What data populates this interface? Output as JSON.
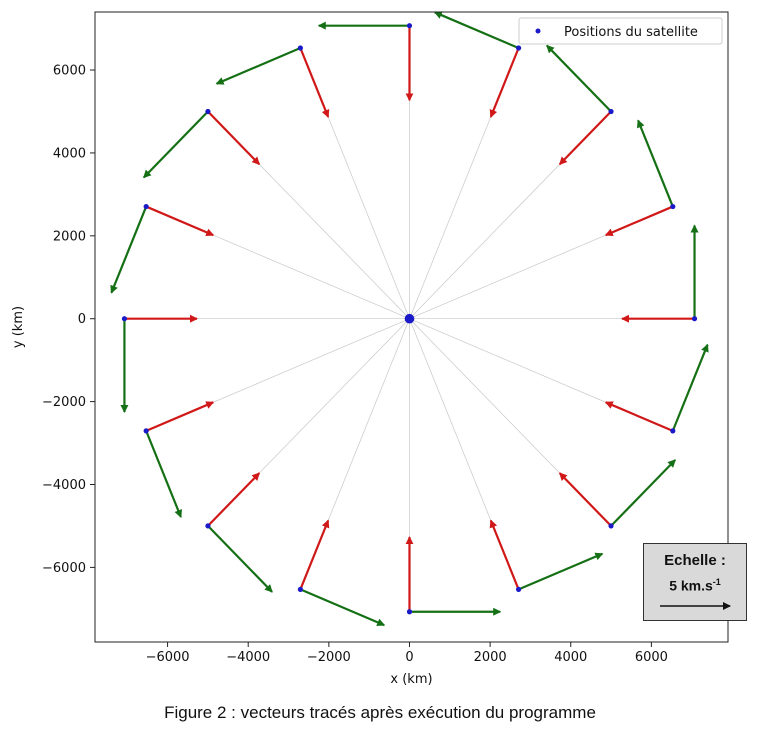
{
  "caption": "Figure 2 : vecteurs tracés après exécution du programme",
  "scale": {
    "title": "Echelle :",
    "value": "5 km.s",
    "exponent": "-1",
    "length_km_per_s": 5
  },
  "chart_data": {
    "type": "scatter",
    "xlabel": "x (km)",
    "ylabel": "y (km)",
    "xlim": [
      -7800,
      7900
    ],
    "ylim": [
      -7800,
      7400
    ],
    "xticks": [
      -6000,
      -4000,
      -2000,
      0,
      2000,
      4000,
      6000
    ],
    "yticks": [
      -6000,
      -4000,
      -2000,
      0,
      2000,
      4000,
      6000
    ],
    "grid": false,
    "legend": {
      "placement": "top-right",
      "entries": [
        "Positions du satellite"
      ]
    },
    "center": {
      "x": 0,
      "y": 0
    },
    "orbit_radius": 7070,
    "series": [
      {
        "name": "Positions du satellite",
        "color": "#1a1ac8",
        "points": [
          {
            "x": 7070,
            "y": 0
          },
          {
            "x": 6531,
            "y": 2706
          },
          {
            "x": 4999,
            "y": 4999
          },
          {
            "x": 2706,
            "y": 6531
          },
          {
            "x": 0,
            "y": 7070
          },
          {
            "x": -2706,
            "y": 6531
          },
          {
            "x": -4999,
            "y": 4999
          },
          {
            "x": -6531,
            "y": 2706
          },
          {
            "x": -7070,
            "y": 0
          },
          {
            "x": -6531,
            "y": -2706
          },
          {
            "x": -4999,
            "y": -4999
          },
          {
            "x": -2706,
            "y": -6531
          },
          {
            "x": 0,
            "y": -7070
          },
          {
            "x": 2706,
            "y": -6531
          },
          {
            "x": 4999,
            "y": -4999
          },
          {
            "x": 6531,
            "y": -2706
          }
        ]
      }
    ],
    "velocity_vectors": {
      "color": "#157015",
      "length_km": 2250,
      "direction": "tangential-counterclockwise"
    },
    "acceleration_vectors": {
      "color": "#d01818",
      "length_km": 1800,
      "direction": "toward-center"
    },
    "colors": {
      "radial_lines": "#c8c8c8",
      "frame": "#222222"
    }
  }
}
